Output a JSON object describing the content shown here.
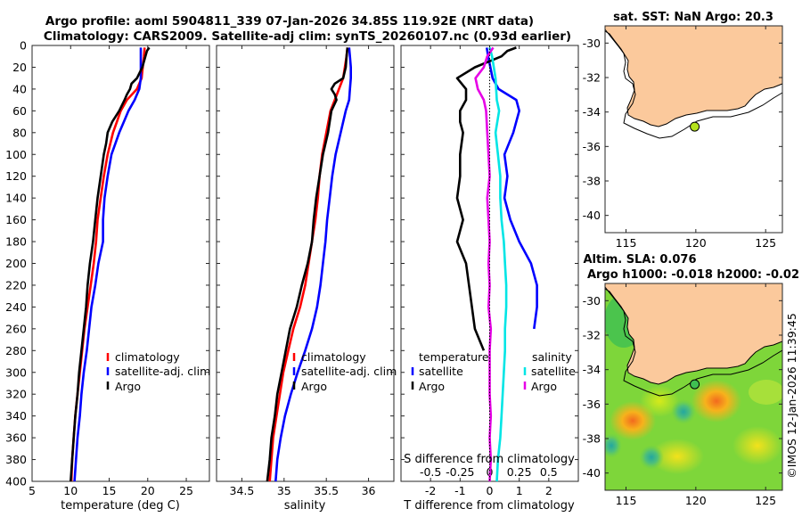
{
  "header": {
    "title_line1": "Argo profile: aoml 5904811_339 07-Jan-2026 34.85S 119.92E (NRT data)",
    "title_line2": "Climatology: CARS2009. Satellite-adj clim: synTS_20260107.nc (0.93d earlier)"
  },
  "colors": {
    "climatology": "#ff0000",
    "satellite": "#0000ff",
    "argo": "#000000",
    "sal_satellite": "#00e5e5",
    "sal_argo": "#e600e6",
    "land": "#fbc99c"
  },
  "chart_data": [
    {
      "id": "temperature",
      "type": "line",
      "xlabel": "temperature (deg C)",
      "ylabel": "",
      "xlim": [
        5,
        28
      ],
      "ylim": [
        0,
        400
      ],
      "xticks": [
        "5",
        "10",
        "15",
        "20",
        "25"
      ],
      "xtick_values": [
        5,
        10,
        15,
        20,
        25
      ],
      "yticks": [
        "0",
        "20",
        "40",
        "60",
        "80",
        "100",
        "120",
        "140",
        "160",
        "180",
        "200",
        "220",
        "240",
        "260",
        "280",
        "300",
        "320",
        "340",
        "360",
        "380",
        "400"
      ],
      "ytick_values": [
        0,
        20,
        40,
        60,
        80,
        100,
        120,
        140,
        160,
        180,
        200,
        220,
        240,
        260,
        280,
        300,
        320,
        340,
        360,
        380,
        400
      ],
      "legend": [
        "climatology",
        "satellite-adj. clim",
        "Argo"
      ],
      "series": [
        {
          "name": "climatology",
          "color": "#ff0000",
          "depth": [
            2,
            10,
            30,
            40,
            50,
            60,
            70,
            80,
            100,
            120,
            140,
            160,
            180,
            200,
            220,
            240,
            260,
            280,
            300,
            320,
            340,
            360,
            380,
            400
          ],
          "values": [
            19.6,
            19.5,
            19.2,
            18.6,
            17.3,
            16.5,
            16.0,
            15.5,
            14.8,
            14.3,
            13.9,
            13.5,
            13.3,
            13.0,
            12.6,
            12.2,
            11.8,
            11.5,
            11.2,
            10.9,
            10.6,
            10.4,
            10.2,
            10.1
          ]
        },
        {
          "name": "satellite-adj. clim",
          "color": "#0000ff",
          "depth": [
            2,
            10,
            30,
            40,
            50,
            60,
            70,
            80,
            100,
            120,
            140,
            160,
            180,
            200,
            220,
            240,
            260,
            280,
            300,
            320,
            340,
            360,
            380,
            400
          ],
          "values": [
            19.1,
            19.1,
            19.1,
            18.9,
            18.3,
            17.5,
            16.9,
            16.3,
            15.3,
            14.8,
            14.4,
            14.2,
            14.2,
            13.6,
            13.2,
            12.7,
            12.4,
            12.1,
            11.7,
            11.4,
            11.2,
            10.9,
            10.7,
            10.5
          ]
        },
        {
          "name": "Argo",
          "color": "#000000",
          "depth": [
            2,
            5,
            10,
            20,
            30,
            35,
            40,
            45,
            50,
            60,
            70,
            80,
            90,
            100,
            120,
            140,
            160,
            180,
            200,
            220,
            240,
            260,
            280,
            300,
            320,
            340,
            360,
            380,
            400
          ],
          "values": [
            20.2,
            19.9,
            19.7,
            19.3,
            18.6,
            17.9,
            17.7,
            17.3,
            17.0,
            16.3,
            15.4,
            14.8,
            14.6,
            14.3,
            13.9,
            13.5,
            13.2,
            12.9,
            12.5,
            12.2,
            12.0,
            11.7,
            11.4,
            11.1,
            10.9,
            10.6,
            10.4,
            10.2,
            10.0
          ]
        }
      ]
    },
    {
      "id": "salinity",
      "type": "line",
      "xlabel": "salinity",
      "xlim": [
        34.2,
        36.3
      ],
      "ylim": [
        0,
        400
      ],
      "xticks": [
        "34.5",
        "35",
        "35.5",
        "36"
      ],
      "xtick_values": [
        34.5,
        35,
        35.5,
        36
      ],
      "legend": [
        "climatology",
        "satellite-adj. clim",
        "Argo"
      ],
      "series": [
        {
          "name": "climatology",
          "color": "#ff0000",
          "depth": [
            2,
            10,
            20,
            30,
            40,
            50,
            60,
            80,
            100,
            120,
            140,
            160,
            180,
            200,
            220,
            240,
            260,
            280,
            300,
            320,
            340,
            360,
            380,
            400
          ],
          "values": [
            35.75,
            35.74,
            35.72,
            35.7,
            35.65,
            35.6,
            35.55,
            35.5,
            35.45,
            35.42,
            35.4,
            35.37,
            35.33,
            35.29,
            35.25,
            35.19,
            35.11,
            35.05,
            34.99,
            34.95,
            34.91,
            34.87,
            34.85,
            34.83
          ]
        },
        {
          "name": "satellite-adj. clim",
          "color": "#0000ff",
          "depth": [
            2,
            10,
            20,
            30,
            40,
            50,
            60,
            80,
            100,
            120,
            140,
            160,
            180,
            200,
            220,
            240,
            260,
            280,
            300,
            320,
            340,
            360,
            380,
            400
          ],
          "values": [
            35.77,
            35.78,
            35.79,
            35.79,
            35.78,
            35.77,
            35.73,
            35.67,
            35.61,
            35.57,
            35.54,
            35.51,
            35.49,
            35.46,
            35.43,
            35.39,
            35.33,
            35.25,
            35.16,
            35.08,
            35.01,
            34.96,
            34.92,
            34.9
          ]
        },
        {
          "name": "Argo",
          "color": "#000000",
          "depth": [
            2,
            10,
            20,
            30,
            35,
            40,
            45,
            50,
            60,
            80,
            100,
            120,
            140,
            160,
            180,
            200,
            220,
            240,
            260,
            280,
            300,
            320,
            340,
            360,
            380,
            400
          ],
          "values": [
            35.75,
            35.74,
            35.73,
            35.7,
            35.6,
            35.56,
            35.6,
            35.62,
            35.56,
            35.52,
            35.46,
            35.42,
            35.38,
            35.35,
            35.33,
            35.28,
            35.21,
            35.15,
            35.07,
            35.02,
            34.97,
            34.92,
            34.89,
            34.85,
            34.83,
            34.8
          ]
        }
      ]
    },
    {
      "id": "difference",
      "type": "line",
      "xlabel": "T difference from climatology",
      "top_xlabel": "S difference from climatology",
      "xlim": [
        -3,
        3
      ],
      "ylim": [
        0,
        400
      ],
      "xticks": [
        "-2",
        "-1",
        "0",
        "1",
        "2"
      ],
      "xtick_values": [
        -2,
        -1,
        0,
        1,
        2
      ],
      "top_xticks": [
        "-0.5",
        "-0.25",
        "0",
        "0.25",
        "0.5"
      ],
      "top_xtick_values": [
        -0.5,
        -0.25,
        0,
        0.25,
        0.5
      ],
      "top_xlim": [
        -0.75,
        0.75
      ],
      "legend_temperature_title": "temperature",
      "legend_salinity_title": "salinity",
      "legend_temperature": [
        "satellite",
        "Argo"
      ],
      "legend_salinity": [
        "satellite",
        "Argo"
      ],
      "series": [
        {
          "name": "T satellite",
          "scale": "T",
          "color": "#0000ff",
          "depth": [
            2,
            10,
            30,
            40,
            50,
            60,
            80,
            100,
            120,
            140,
            160,
            180,
            200,
            220,
            240,
            260
          ],
          "values": [
            -0.1,
            -0.05,
            0.1,
            0.3,
            0.9,
            1.0,
            0.8,
            0.5,
            0.6,
            0.5,
            0.7,
            1.0,
            1.4,
            1.6,
            1.6,
            1.5
          ]
        },
        {
          "name": "T Argo",
          "scale": "T",
          "color": "#000000",
          "depth": [
            2,
            5,
            10,
            20,
            30,
            40,
            50,
            60,
            70,
            80,
            100,
            120,
            140,
            160,
            180,
            200,
            220,
            240,
            260,
            280
          ],
          "values": [
            0.9,
            0.6,
            0.4,
            -0.5,
            -1.1,
            -0.8,
            -0.8,
            -1.0,
            -1.0,
            -0.9,
            -1.0,
            -1.0,
            -1.1,
            -0.9,
            -1.1,
            -0.8,
            -0.7,
            -0.6,
            -0.5,
            -0.2
          ]
        },
        {
          "name": "S satellite",
          "scale": "S",
          "color": "#00e5e5",
          "depth": [
            2,
            10,
            30,
            50,
            60,
            80,
            100,
            120,
            140,
            160,
            180,
            200,
            220,
            240,
            260,
            280,
            300,
            320,
            340,
            360,
            380,
            400
          ],
          "values": [
            0.0,
            0.02,
            0.05,
            0.06,
            0.08,
            0.05,
            0.07,
            0.09,
            0.09,
            0.1,
            0.12,
            0.13,
            0.14,
            0.14,
            0.13,
            0.13,
            0.12,
            0.11,
            0.1,
            0.09,
            0.07,
            0.06
          ]
        },
        {
          "name": "S Argo",
          "scale": "S",
          "color": "#e600e6",
          "depth": [
            2,
            10,
            20,
            30,
            40,
            50,
            60,
            80,
            100,
            120,
            140,
            160,
            180,
            200,
            220,
            240,
            260,
            280,
            300,
            320,
            340,
            360,
            380,
            400
          ],
          "values": [
            0.03,
            -0.02,
            -0.05,
            -0.12,
            -0.1,
            -0.05,
            -0.03,
            -0.02,
            -0.01,
            0.0,
            -0.02,
            -0.01,
            0.0,
            -0.01,
            0.0,
            -0.01,
            0.01,
            0.0,
            0.0,
            0.0,
            0.01,
            0.0,
            0.01,
            0.0
          ]
        }
      ]
    },
    {
      "id": "sst-map",
      "type": "map",
      "title": "sat. SST: NaN Argo: 20.3",
      "xlim": [
        113.5,
        126.2
      ],
      "ylim": [
        -41,
        -29
      ],
      "xticks": [
        "115",
        "120",
        "125"
      ],
      "xtick_values": [
        115,
        120,
        125
      ],
      "yticks": [
        "-30",
        "-32",
        "-34",
        "-36",
        "-38",
        "-40"
      ],
      "ytick_values": [
        -30,
        -32,
        -34,
        -36,
        -38,
        -40
      ],
      "argo_position": {
        "lon": 119.92,
        "lat": -34.85
      }
    },
    {
      "id": "sla-map",
      "type": "map",
      "title_line1": "Altim. SLA: 0.076",
      "title_line2": "Argo h1000: -0.018 h2000: -0.02",
      "xlim": [
        113.5,
        126.2
      ],
      "ylim": [
        -41,
        -29
      ],
      "xticks": [
        "115",
        "120",
        "125"
      ],
      "xtick_values": [
        115,
        120,
        125
      ],
      "yticks": [
        "-30",
        "-32",
        "-34",
        "-36",
        "-38",
        "-40"
      ],
      "ytick_values": [
        -30,
        -32,
        -34,
        -36,
        -38,
        -40
      ],
      "argo_position": {
        "lon": 119.92,
        "lat": -34.85
      }
    }
  ],
  "credit": "©IMOS 12-Jan-2026 11:39:45"
}
